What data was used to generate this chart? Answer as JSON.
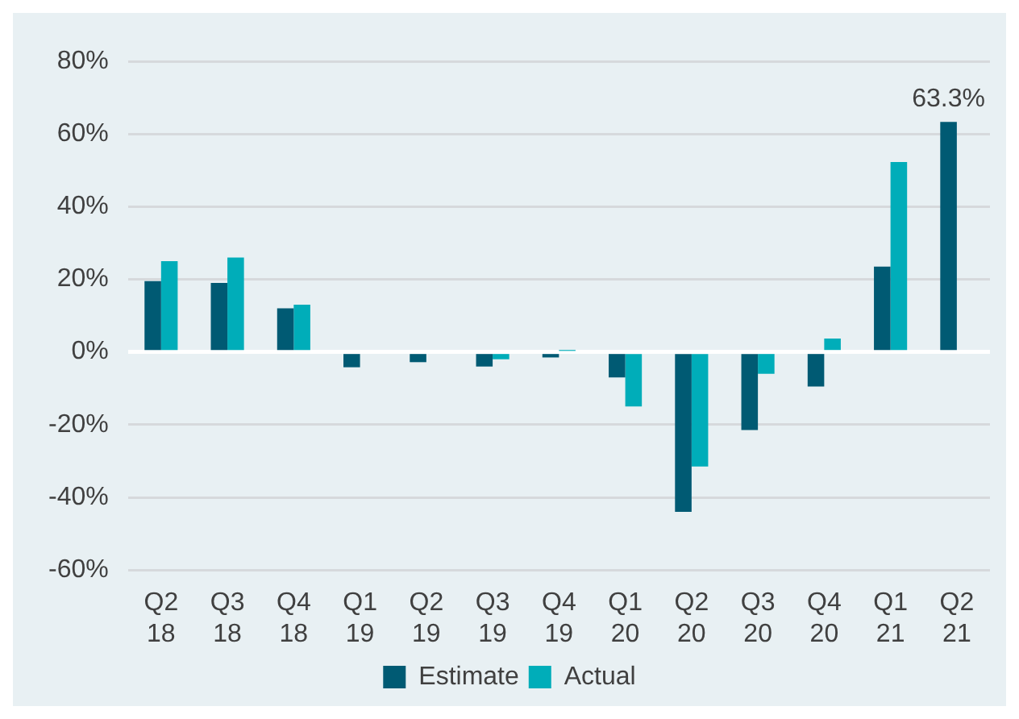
{
  "chart_data": {
    "type": "bar",
    "categories": [
      "Q2 18",
      "Q3 18",
      "Q4 18",
      "Q1 19",
      "Q2 19",
      "Q3 19",
      "Q4 19",
      "Q1 20",
      "Q2 20",
      "Q3 20",
      "Q4 20",
      "Q1 21",
      "Q2 21"
    ],
    "series": [
      {
        "name": "Estimate",
        "color": "#005a73",
        "values": [
          19.5,
          19,
          12,
          -4.2,
          -2.8,
          -4,
          -1.5,
          -7,
          -44,
          -21.5,
          -9.5,
          23.5,
          63.3
        ],
        "value_labels": [
          null,
          null,
          null,
          null,
          null,
          null,
          null,
          null,
          null,
          null,
          null,
          null,
          "63.3%"
        ]
      },
      {
        "name": "Actual",
        "color": "#00adb9",
        "values": [
          25,
          26,
          13,
          null,
          null,
          -2,
          0.3,
          -15,
          -31.5,
          -6,
          3.7,
          52.3,
          null
        ]
      }
    ],
    "ylim": [
      -60,
      80
    ],
    "yticks": [
      {
        "value": -60,
        "label": "-60%"
      },
      {
        "value": -40,
        "label": "-40%"
      },
      {
        "value": -20,
        "label": "-20%"
      },
      {
        "value": 0,
        "label": "0%"
      },
      {
        "value": 20,
        "label": "20%"
      },
      {
        "value": 40,
        "label": "40%"
      },
      {
        "value": 60,
        "label": "60%"
      },
      {
        "value": 80,
        "label": "80%"
      }
    ],
    "grid": "y",
    "legend": "bottom"
  }
}
